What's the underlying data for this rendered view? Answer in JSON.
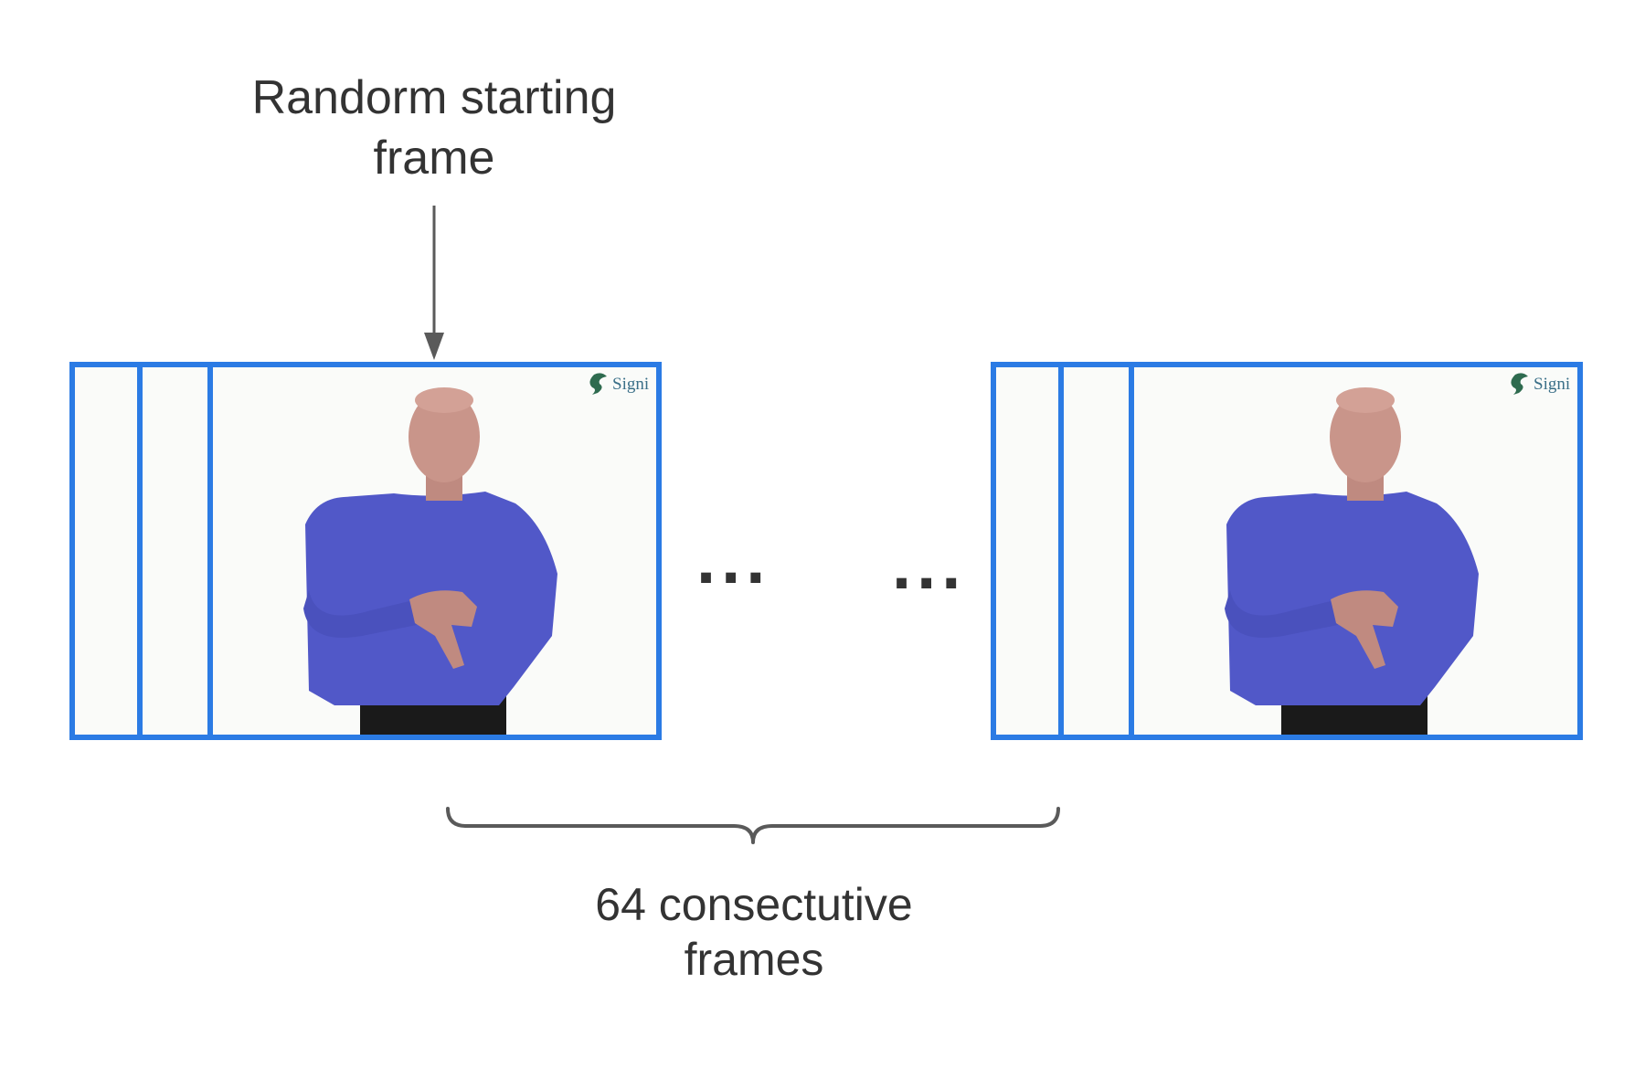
{
  "start_label": [
    "Randorm starting",
    "frame"
  ],
  "span_label": [
    "64 consectutive",
    "frames"
  ],
  "ellipsis": "...",
  "watermark": "Signi",
  "colors": {
    "frame_border": "#2b7be4",
    "arrow": "#5a5a5a",
    "text": "#333333",
    "shirt": "#5158c8",
    "skin": "#c9958a",
    "pants": "#1a1a1a"
  },
  "icons": [
    "down-arrow-icon",
    "curly-brace-icon",
    "logo-icon"
  ]
}
